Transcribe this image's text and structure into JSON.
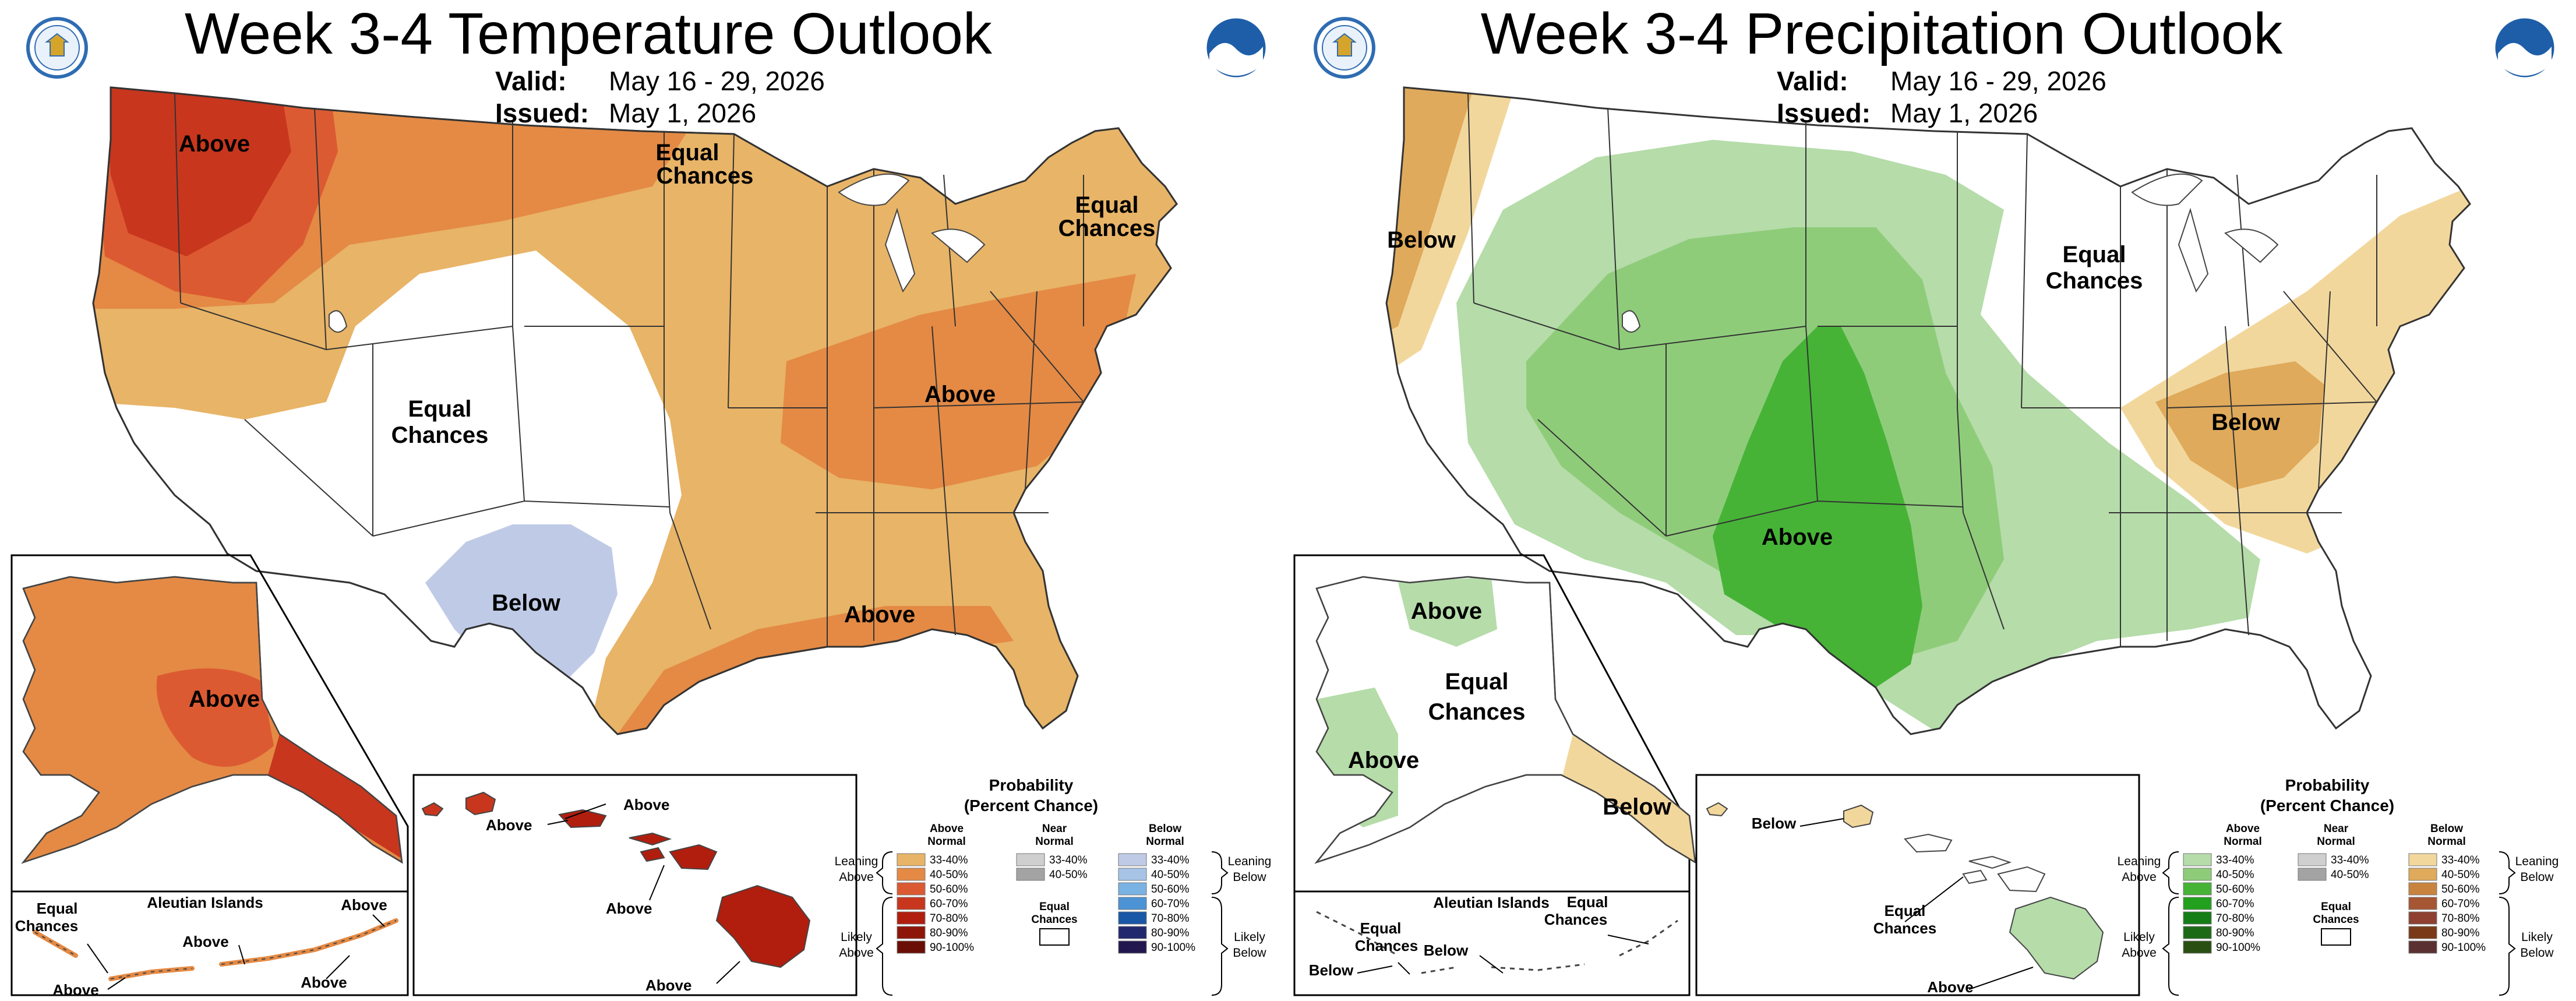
{
  "colors": {
    "above_33": "#e8b467",
    "above_40": "#e48a45",
    "above_50": "#dc5a32",
    "above_60": "#c8361e",
    "above_70": "#b11e0e",
    "above_80": "#8e1608",
    "above_90": "#6b0e05",
    "below_33": "#bfcbe6",
    "below_40": "#a7c4e6",
    "below_50": "#7bb2e4",
    "below_60": "#4b93d4",
    "below_70": "#1a57a6",
    "below_80": "#21286e",
    "below_90": "#22184e",
    "wet_33": "#b5dca9",
    "wet_40": "#8fcc7a",
    "wet_50": "#46b337",
    "wet_60": "#23a01e",
    "wet_70": "#157d16",
    "wet_80": "#1d6a16",
    "wet_90": "#2a4f12",
    "dry_33": "#f2d79d",
    "dry_40": "#dfaa5b",
    "dry_50": "#c8843f",
    "dry_60": "#a65633",
    "dry_70": "#8f4030",
    "dry_80": "#7a3a17",
    "dry_90": "#5a3130",
    "near_33": "#cfcfcf",
    "near_40": "#a3a3a3",
    "noaa_blue": "#1e5ea8",
    "doc_blue": "#2f6cb3"
  },
  "temp": {
    "title": "Week 3-4 Temperature Outlook",
    "valid_key": "Valid:",
    "valid_val": "May 16 - 29, 2026",
    "issued_key": "Issued:",
    "issued_val": "May 1, 2026",
    "labels": {
      "nw_above": "Above",
      "ne_equal_1": "Equal",
      "ne_equal_2": "Chances",
      "mt_equal_1": "Equal",
      "mt_equal_2": "Chances",
      "far_ne_equal_1": "Equal",
      "far_ne_equal_2": "Chances",
      "east_above": "Above",
      "sw_below": "Below",
      "south_above": "Above",
      "ak_above": "Above",
      "aleut_title": "Aleutian Islands",
      "aleut_equal_1": "Equal",
      "aleut_equal_2": "Chances",
      "aleut_above_1": "Above",
      "aleut_above_2": "Above",
      "aleut_above_3": "Above",
      "aleut_above_4": "Above",
      "hi_above_1": "Above",
      "hi_above_2": "Above",
      "hi_above_3": "Above",
      "hi_above_4": "Above"
    },
    "legend": {
      "title_1": "Probability",
      "title_2": "(Percent Chance)",
      "col_left_1": "Above",
      "col_left_2": "Normal",
      "col_mid_1": "Near",
      "col_mid_2": "Normal",
      "col_right_1": "Below",
      "col_right_2": "Normal",
      "ranges": [
        "33-40%",
        "40-50%",
        "50-60%",
        "60-70%",
        "70-80%",
        "80-90%",
        "90-100%"
      ],
      "near_ranges": [
        "33-40%",
        "40-50%"
      ],
      "equal_1": "Equal",
      "equal_2": "Chances",
      "lean_above_1": "Leaning",
      "lean_above_2": "Above",
      "likely_above_1": "Likely",
      "likely_above_2": "Above",
      "lean_below_1": "Leaning",
      "lean_below_2": "Below",
      "likely_below_1": "Likely",
      "likely_below_2": "Below"
    }
  },
  "precip": {
    "title": "Week 3-4 Precipitation Outlook",
    "valid_key": "Valid:",
    "valid_val": "May 16 - 29, 2026",
    "issued_key": "Issued:",
    "issued_val": "May 1, 2026",
    "labels": {
      "west_below": "Below",
      "ne_equal_1": "Equal",
      "ne_equal_2": "Chances",
      "east_below": "Below",
      "central_above": "Above",
      "ak_above_1": "Above",
      "ak_above_2": "Above",
      "ak_equal_1": "Equal",
      "ak_equal_2": "Chances",
      "ak_below": "Below",
      "aleut_title": "Aleutian Islands",
      "aleut_equal_a1": "Equal",
      "aleut_equal_a2": "Chances",
      "aleut_equal_b1": "Equal",
      "aleut_equal_b2": "Chances",
      "aleut_below_1": "Below",
      "aleut_below_2": "Below",
      "hi_below": "Below",
      "hi_equal_1": "Equal",
      "hi_equal_2": "Chances",
      "hi_above": "Above"
    },
    "legend": {
      "title_1": "Probability",
      "title_2": "(Percent Chance)",
      "col_left_1": "Above",
      "col_left_2": "Normal",
      "col_mid_1": "Near",
      "col_mid_2": "Normal",
      "col_right_1": "Below",
      "col_right_2": "Normal",
      "ranges": [
        "33-40%",
        "40-50%",
        "50-60%",
        "60-70%",
        "70-80%",
        "80-90%",
        "90-100%"
      ],
      "near_ranges": [
        "33-40%",
        "40-50%"
      ],
      "equal_1": "Equal",
      "equal_2": "Chances",
      "lean_above_1": "Leaning",
      "lean_above_2": "Above",
      "likely_above_1": "Likely",
      "likely_above_2": "Above",
      "lean_below_1": "Leaning",
      "lean_below_2": "Below",
      "likely_below_1": "Likely",
      "likely_below_2": "Below"
    }
  }
}
